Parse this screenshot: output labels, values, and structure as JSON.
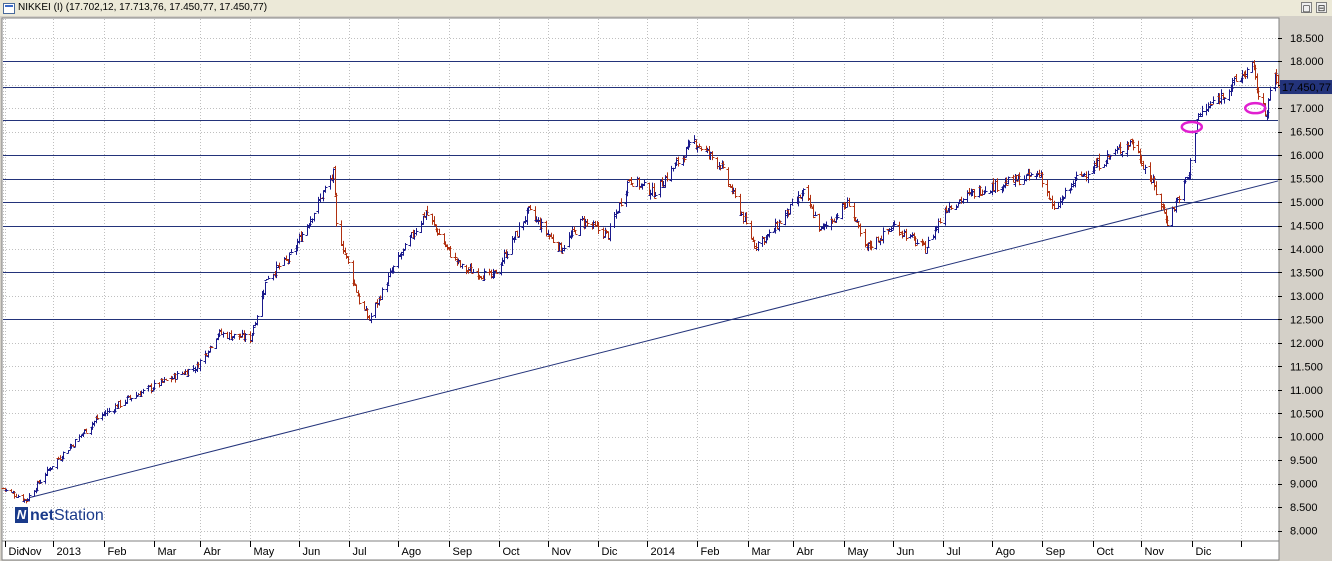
{
  "window": {
    "title": "NIKKEI (I) (17.702,12, 17.713,76, 17.450,77, 17.450,77)",
    "buttons": [
      "▢",
      "⊟"
    ]
  },
  "logo": {
    "bold": "net",
    "rest": "Station"
  },
  "colors": {
    "background": "#ffffff",
    "up_bar": "#1a1a8c",
    "down_bar": "#b03010",
    "hlines": "#23337a",
    "trendline": "#23337a",
    "ellipse": "#e020d0",
    "grid": "#bfbfbf",
    "last_price_box": "#23337a"
  },
  "chart_data": {
    "type": "ohlc",
    "title": "NIKKEI (I)",
    "last_ohlc": {
      "open": 17702.12,
      "high": 17713.76,
      "low": 17450.77,
      "close": 17450.77
    },
    "last_price_label": "17.450,77",
    "y_ticks": [
      "8.000",
      "8.500",
      "9.000",
      "9.500",
      "10.000",
      "10.500",
      "11.000",
      "11.500",
      "12.000",
      "12.500",
      "13.000",
      "13.500",
      "14.000",
      "14.500",
      "15.000",
      "15.500",
      "16.000",
      "16.500",
      "17.000",
      "17.500",
      "18.000",
      "18.500"
    ],
    "ylim": [
      7800,
      18900
    ],
    "x_ticks": [
      "Nov",
      "Dic",
      "2013",
      "Feb",
      "Mar",
      "Abr",
      "May",
      "Jun",
      "Jul",
      "Ago",
      "Sep",
      "Oct",
      "Nov",
      "Dic",
      "2014",
      "Feb",
      "Mar",
      "Abr",
      "May",
      "Jun",
      "Jul",
      "Ago",
      "Sep",
      "Oct",
      "Nov",
      "Dic"
    ],
    "x_range": [
      "2012-10-31",
      "2014-12-24"
    ],
    "grid": true,
    "horizontal_levels": [
      18000,
      17450,
      16750,
      16000,
      15500,
      15000,
      14500,
      13500,
      12500
    ],
    "trendline": {
      "from": [
        "2012-11-16",
        8700
      ],
      "to": [
        "2014-12-24",
        15450
      ]
    },
    "ellipses": [
      {
        "date": "2014-11-01",
        "value": 16600
      },
      {
        "date": "2014-12-10",
        "value": 17000
      }
    ],
    "anchors": [
      [
        "2012-10-31",
        8900
      ],
      [
        "2012-11-14",
        8650
      ],
      [
        "2012-11-30",
        9400
      ],
      [
        "2012-12-28",
        10400
      ],
      [
        "2013-01-15",
        10800
      ],
      [
        "2013-02-08",
        11200
      ],
      [
        "2013-02-27",
        11500
      ],
      [
        "2013-03-12",
        12200
      ],
      [
        "2013-04-01",
        12100
      ],
      [
        "2013-04-11",
        13400
      ],
      [
        "2013-04-25",
        13800
      ],
      [
        "2013-05-22",
        15600
      ],
      [
        "2013-05-24",
        14500
      ],
      [
        "2013-06-07",
        12900
      ],
      [
        "2013-06-13",
        12500
      ],
      [
        "2013-06-28",
        13600
      ],
      [
        "2013-07-18",
        14800
      ],
      [
        "2013-07-31",
        14000
      ],
      [
        "2013-08-09",
        13600
      ],
      [
        "2013-08-28",
        13400
      ],
      [
        "2013-09-19",
        14800
      ],
      [
        "2013-10-09",
        14000
      ],
      [
        "2013-10-22",
        14600
      ],
      [
        "2013-11-07",
        14300
      ],
      [
        "2013-11-20",
        15500
      ],
      [
        "2013-12-05",
        15200
      ],
      [
        "2013-12-30",
        16300
      ],
      [
        "2014-01-15",
        15800
      ],
      [
        "2014-02-05",
        14100
      ],
      [
        "2014-02-14",
        14300
      ],
      [
        "2014-03-07",
        15200
      ],
      [
        "2014-03-18",
        14400
      ],
      [
        "2014-04-04",
        15000
      ],
      [
        "2014-04-14",
        14000
      ],
      [
        "2014-05-02",
        14500
      ],
      [
        "2014-05-21",
        14000
      ],
      [
        "2014-06-03",
        14900
      ],
      [
        "2014-06-26",
        15300
      ],
      [
        "2014-07-31",
        15600
      ],
      [
        "2014-08-08",
        14800
      ],
      [
        "2014-08-22",
        15500
      ],
      [
        "2014-09-25",
        16300
      ],
      [
        "2014-10-08",
        15400
      ],
      [
        "2014-10-17",
        14600
      ],
      [
        "2014-10-30",
        15600
      ],
      [
        "2014-11-04",
        16800
      ],
      [
        "2014-11-20",
        17300
      ],
      [
        "2014-12-08",
        17900
      ],
      [
        "2014-12-12",
        17300
      ],
      [
        "2014-12-16",
        16900
      ],
      [
        "2014-12-22",
        17700
      ],
      [
        "2014-12-24",
        17450
      ]
    ]
  }
}
